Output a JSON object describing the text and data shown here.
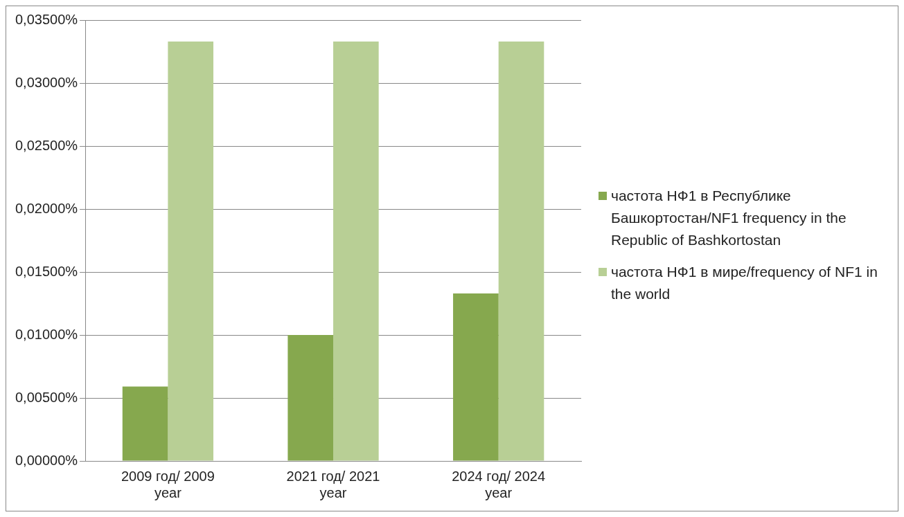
{
  "chart_data": {
    "type": "bar",
    "categories": [
      "2009 год/ 2009 year",
      "2021 год/ 2021 year",
      "2024 год/ 2024 year"
    ],
    "series": [
      {
        "name": "частота НФ1 в Республике Башкортостан/NF1 frequency in the Republic of Bashkortostan",
        "color": "#86a84e",
        "values": [
          0.0059,
          0.01,
          0.0133
        ]
      },
      {
        "name": "частота НФ1 в мире/frequency of NF1 in the world",
        "color": "#b8cf95",
        "values": [
          0.0333,
          0.0333,
          0.0333
        ]
      }
    ],
    "ylim": [
      0,
      0.035
    ],
    "yticks": [
      {
        "value": 0,
        "label": "0,00000%"
      },
      {
        "value": 0.005,
        "label": "0,00500%"
      },
      {
        "value": 0.01,
        "label": "0,01000%"
      },
      {
        "value": 0.015,
        "label": "0,01500%"
      },
      {
        "value": 0.02,
        "label": "0,02000%"
      },
      {
        "value": 0.025,
        "label": "0,02500%"
      },
      {
        "value": 0.03,
        "label": "0,03000%"
      },
      {
        "value": 0.035,
        "label": "0,03500%"
      }
    ],
    "grid": "y",
    "legend": "right"
  }
}
